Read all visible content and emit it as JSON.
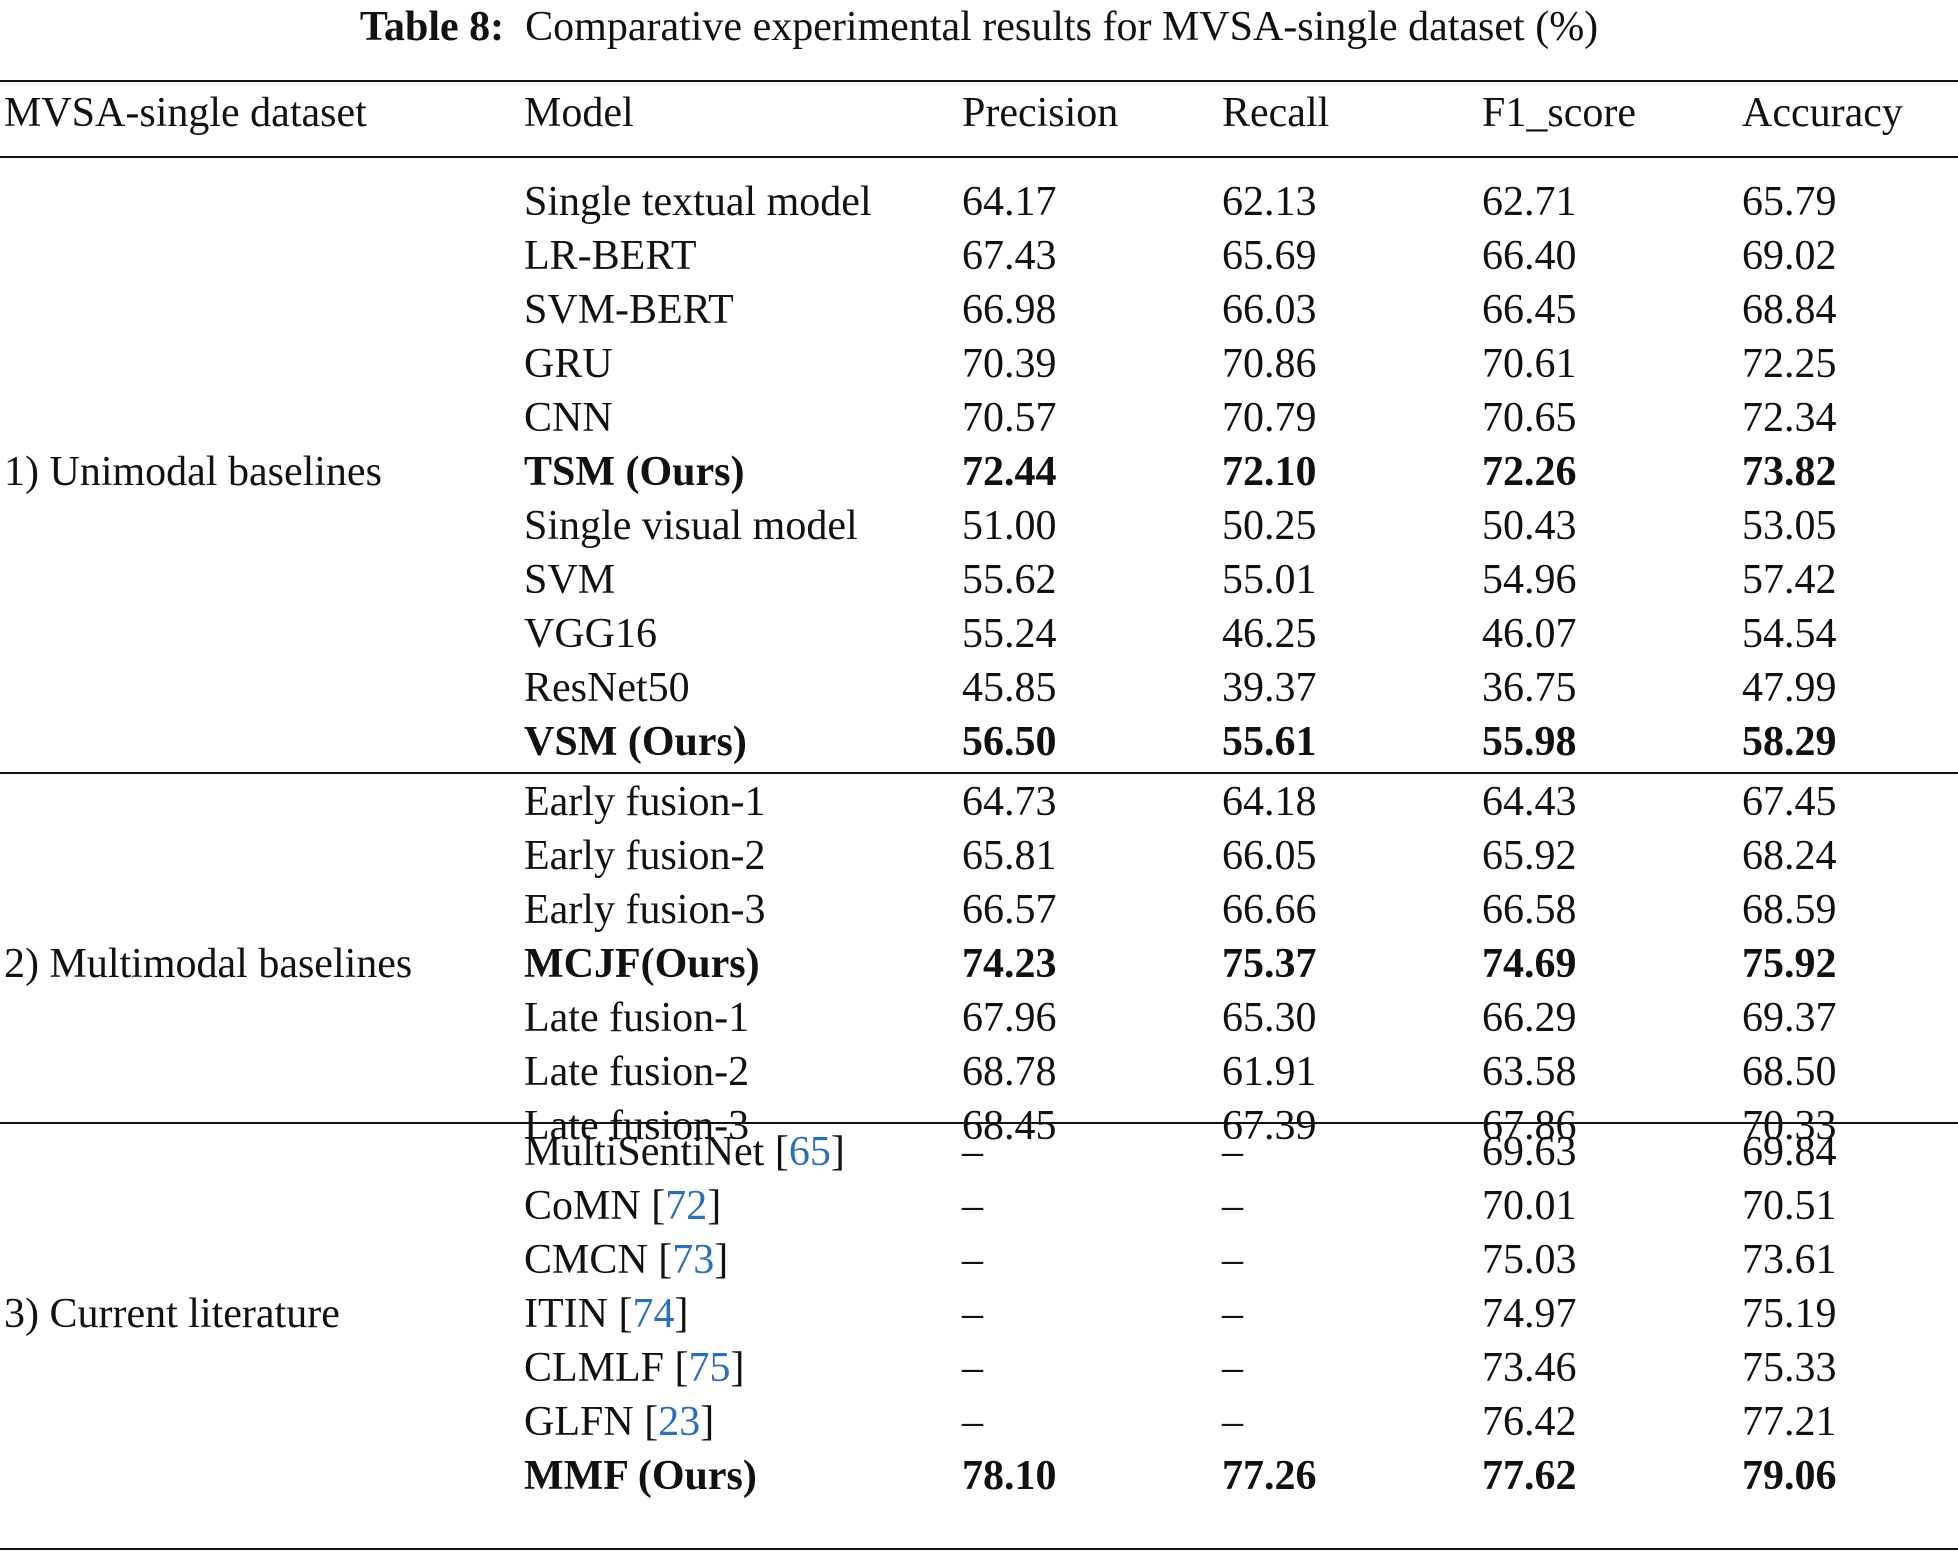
{
  "caption": {
    "label": "Table 8:",
    "text": "Comparative experimental results for MVSA-single dataset (%)"
  },
  "headers": [
    "MVSA-single dataset",
    "Model",
    "Precision",
    "Recall",
    "F1_score",
    "Accuracy"
  ],
  "groups": [
    {
      "name": "1) Unimodal baselines",
      "rows": [
        {
          "model": "Single textual model",
          "ref": "",
          "precision": "64.17",
          "recall": "62.13",
          "f1": "62.71",
          "accuracy": "65.79",
          "bold": false
        },
        {
          "model": "LR-BERT",
          "ref": "",
          "precision": "67.43",
          "recall": "65.69",
          "f1": "66.40",
          "accuracy": "69.02",
          "bold": false
        },
        {
          "model": "SVM-BERT",
          "ref": "",
          "precision": "66.98",
          "recall": "66.03",
          "f1": "66.45",
          "accuracy": "68.84",
          "bold": false
        },
        {
          "model": "GRU",
          "ref": "",
          "precision": "70.39",
          "recall": "70.86",
          "f1": "70.61",
          "accuracy": "72.25",
          "bold": false
        },
        {
          "model": "CNN",
          "ref": "",
          "precision": "70.57",
          "recall": "70.79",
          "f1": "70.65",
          "accuracy": "72.34",
          "bold": false
        },
        {
          "model": "TSM (Ours)",
          "ref": "",
          "precision": "72.44",
          "recall": "72.10",
          "f1": "72.26",
          "accuracy": "73.82",
          "bold": true
        },
        {
          "model": "Single visual model",
          "ref": "",
          "precision": "51.00",
          "recall": "50.25",
          "f1": "50.43",
          "accuracy": "53.05",
          "bold": false
        },
        {
          "model": "SVM",
          "ref": "",
          "precision": "55.62",
          "recall": "55.01",
          "f1": "54.96",
          "accuracy": "57.42",
          "bold": false
        },
        {
          "model": "VGG16",
          "ref": "",
          "precision": "55.24",
          "recall": "46.25",
          "f1": "46.07",
          "accuracy": "54.54",
          "bold": false
        },
        {
          "model": "ResNet50",
          "ref": "",
          "precision": "45.85",
          "recall": "39.37",
          "f1": "36.75",
          "accuracy": "47.99",
          "bold": false
        },
        {
          "model": "VSM (Ours)",
          "ref": "",
          "precision": "56.50",
          "recall": "55.61",
          "f1": "55.98",
          "accuracy": "58.29",
          "bold": true
        }
      ]
    },
    {
      "name": "2) Multimodal baselines",
      "rows": [
        {
          "model": "Early fusion-1",
          "ref": "",
          "precision": "64.73",
          "recall": "64.18",
          "f1": "64.43",
          "accuracy": "67.45",
          "bold": false
        },
        {
          "model": "Early fusion-2",
          "ref": "",
          "precision": "65.81",
          "recall": "66.05",
          "f1": "65.92",
          "accuracy": "68.24",
          "bold": false
        },
        {
          "model": "Early fusion-3",
          "ref": "",
          "precision": "66.57",
          "recall": "66.66",
          "f1": "66.58",
          "accuracy": "68.59",
          "bold": false
        },
        {
          "model": "MCJF(Ours)",
          "ref": "",
          "precision": "74.23",
          "recall": "75.37",
          "f1": "74.69",
          "accuracy": "75.92",
          "bold": true
        },
        {
          "model": "Late fusion-1",
          "ref": "",
          "precision": "67.96",
          "recall": "65.30",
          "f1": "66.29",
          "accuracy": "69.37",
          "bold": false
        },
        {
          "model": "Late fusion-2",
          "ref": "",
          "precision": "68.78",
          "recall": "61.91",
          "f1": "63.58",
          "accuracy": "68.50",
          "bold": false
        },
        {
          "model": "Late fusion-3",
          "ref": "",
          "precision": "68.45",
          "recall": "67.39",
          "f1": "67.86",
          "accuracy": "70.33",
          "bold": false
        }
      ]
    },
    {
      "name": "3) Current literature",
      "rows": [
        {
          "model": "MultiSentiNet ",
          "ref": "65",
          "precision": "–",
          "recall": "–",
          "f1": "69.63",
          "accuracy": "69.84",
          "bold": false
        },
        {
          "model": "CoMN ",
          "ref": "72",
          "precision": "–",
          "recall": "–",
          "f1": "70.01",
          "accuracy": "70.51",
          "bold": false
        },
        {
          "model": "CMCN ",
          "ref": "73",
          "precision": "–",
          "recall": "–",
          "f1": "75.03",
          "accuracy": "73.61",
          "bold": false
        },
        {
          "model": "ITIN ",
          "ref": "74",
          "precision": "–",
          "recall": "–",
          "f1": "74.97",
          "accuracy": "75.19",
          "bold": false
        },
        {
          "model": "CLMLF ",
          "ref": "75",
          "precision": "–",
          "recall": "–",
          "f1": "73.46",
          "accuracy": "75.33",
          "bold": false
        },
        {
          "model": "GLFN ",
          "ref": "23",
          "precision": "–",
          "recall": "–",
          "f1": "76.42",
          "accuracy": "77.21",
          "bold": false
        },
        {
          "model": "MMF (Ours)",
          "ref": "",
          "precision": "78.10",
          "recall": "77.26",
          "f1": "77.62",
          "accuracy": "79.06",
          "bold": true
        }
      ]
    }
  ]
}
